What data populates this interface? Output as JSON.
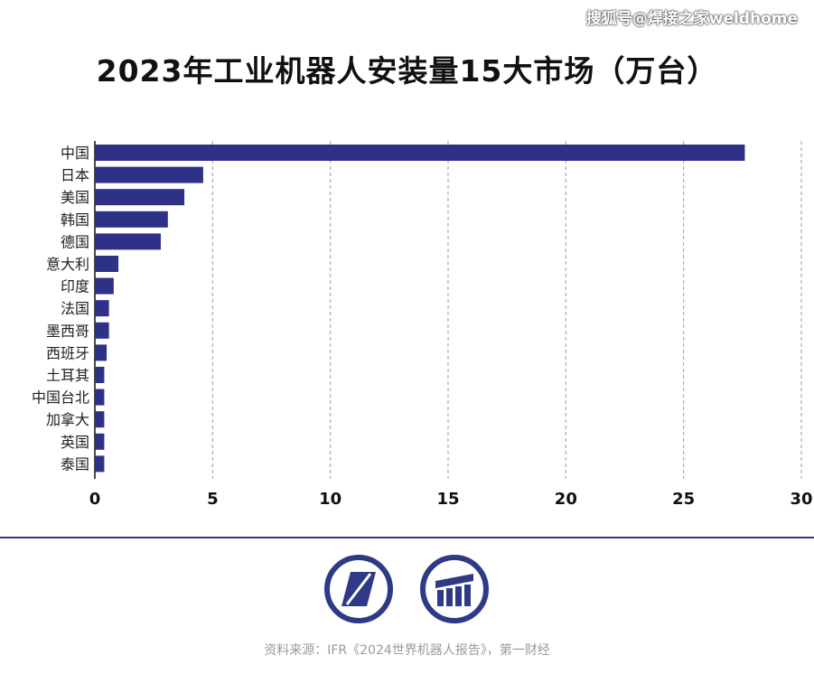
{
  "watermark": "搜狐号@焊接之家weldhome",
  "title": "2023年工业机器人安装量15大市场（万台）",
  "source": "资料来源：IFR《2024世界机器人报告》，第一财经",
  "colors": {
    "bar": "#2e3286",
    "grid": "#9e9e9e",
    "axis": "#111111",
    "divider": "#2e3a78"
  },
  "logos": [
    "diamond-logo-icon",
    "columns-logo-icon"
  ],
  "chart_data": {
    "type": "bar",
    "orientation": "horizontal",
    "categories": [
      "中国",
      "日本",
      "美国",
      "韩国",
      "德国",
      "意大利",
      "印度",
      "法国",
      "墨西哥",
      "西班牙",
      "土耳其",
      "中国台北",
      "加拿大",
      "英国",
      "泰国"
    ],
    "values": [
      27.6,
      4.6,
      3.8,
      3.1,
      2.8,
      1.0,
      0.8,
      0.6,
      0.6,
      0.5,
      0.4,
      0.4,
      0.4,
      0.4,
      0.4
    ],
    "xticks": [
      0,
      5,
      10,
      15,
      20,
      25,
      30
    ],
    "xlim": [
      0,
      30
    ],
    "grid": "vertical dashed",
    "title": "2023年工业机器人安装量15大市场（万台）",
    "xlabel": "",
    "ylabel": ""
  }
}
